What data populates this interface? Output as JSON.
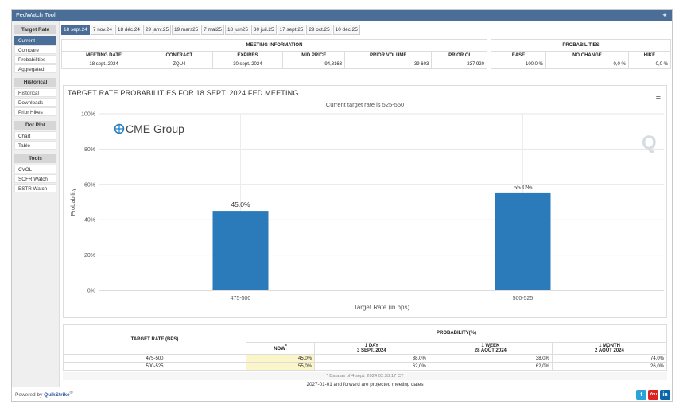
{
  "app": {
    "title": "FedWatch Tool"
  },
  "colors": {
    "accent": "#4a6e98",
    "bar": "#2b7ab9",
    "highlight": "#fbf6c9"
  },
  "sidebar": {
    "sections": [
      {
        "heading": "Target Rate",
        "items": [
          "Current",
          "Compare",
          "Probabilities",
          "Aggregated"
        ]
      },
      {
        "heading": "Historical",
        "items": [
          "Historical",
          "Downloads",
          "Prior Hikes"
        ]
      },
      {
        "heading": "Dot Plot",
        "items": [
          "Chart",
          "Table"
        ]
      },
      {
        "heading": "Tools",
        "items": [
          "CVOL",
          "SOFR Watch",
          "ESTR Watch"
        ]
      }
    ]
  },
  "tabs": [
    "18 sept.24",
    "7 nov.24",
    "18 déc.24",
    "29 janv.25",
    "19 mars25",
    "7 mai25",
    "18 juin25",
    "30 juil.25",
    "17 sept.25",
    "29 oct.25",
    "10 déc.25"
  ],
  "meeting_info": {
    "group_label": "MEETING INFORMATION",
    "headers": [
      "MEETING DATE",
      "CONTRACT",
      "EXPIRES",
      "MID PRICE",
      "PRIOR VOLUME",
      "PRIOR OI"
    ],
    "values": [
      "18 sept. 2024",
      "ZQU4",
      "30 sept. 2024",
      "94,8163",
      "39 603",
      "237 920"
    ]
  },
  "probabilities": {
    "group_label": "PROBABILITIES",
    "headers": [
      "EASE",
      "NO CHANGE",
      "HIKE"
    ],
    "values": [
      "100,0 %",
      "0,0 %",
      "0,0 %"
    ]
  },
  "chart": {
    "title": "TARGET RATE PROBABILITIES FOR 18 SEPT. 2024 FED MEETING",
    "subtitle": "Current target rate is 525-550",
    "logo": "CME Group",
    "menu_icon": "hamburger-icon"
  },
  "chart_data": {
    "type": "bar",
    "categories": [
      "475-500",
      "500-525"
    ],
    "values": [
      45.0,
      55.0
    ],
    "data_labels": [
      "45.0%",
      "55.0%"
    ],
    "xlabel": "Target Rate (in bps)",
    "ylabel": "Probability",
    "ylim": [
      0,
      100
    ],
    "yticks": [
      "0%",
      "20%",
      "40%",
      "60%",
      "80%",
      "100%"
    ],
    "grid": true
  },
  "bottom_table": {
    "col1_header": "TARGET RATE (BPS)",
    "group_header": "PROBABILITY(%)",
    "now_label": "NOW",
    "now_sup": "*",
    "cols": [
      {
        "label": "1 DAY",
        "date": "3 SEPT. 2024"
      },
      {
        "label": "1 WEEK",
        "date": "28 AOÛT 2024"
      },
      {
        "label": "1 MONTH",
        "date": "2 AOÛT 2024"
      }
    ],
    "rows": [
      {
        "rate": "475-500",
        "now": "45,0%",
        "d1": "38,0%",
        "w1": "38,0%",
        "m1": "74,0%"
      },
      {
        "rate": "500-525",
        "now": "55,0%",
        "d1": "62,0%",
        "w1": "62,0%",
        "m1": "26,0%"
      }
    ],
    "as_of": "* Data as of 4 sept. 2024 02:33:17 CT",
    "projected_note": "2027-01-01 and forward are projected meeting dates"
  },
  "footer": {
    "powered_prefix": "Powered by",
    "powered_brand": "QuikStrike",
    "reg": "®"
  },
  "social": [
    "twitter-icon",
    "youtube-icon",
    "linkedin-icon"
  ]
}
